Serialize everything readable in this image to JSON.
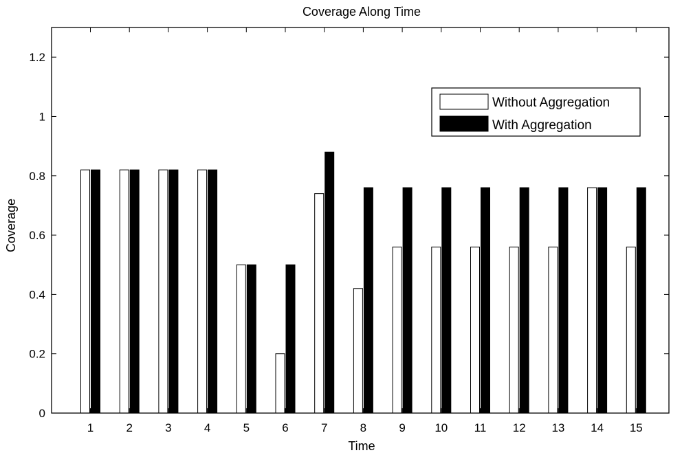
{
  "chart_data": {
    "type": "bar",
    "title": "Coverage Along Time",
    "xlabel": "Time",
    "ylabel": "Coverage",
    "categories": [
      "1",
      "2",
      "3",
      "4",
      "5",
      "6",
      "7",
      "8",
      "9",
      "10",
      "11",
      "12",
      "13",
      "14",
      "15"
    ],
    "ylim": [
      0,
      1.3
    ],
    "yticks": [
      0,
      0.2,
      0.4,
      0.6,
      0.8,
      1,
      1.2
    ],
    "ytick_labels": [
      "0",
      "0.2",
      "0.4",
      "0.6",
      "0.8",
      "1",
      "1.2"
    ],
    "grid": false,
    "legend_position": "top-right",
    "series": [
      {
        "name": "Without Aggregation",
        "color": "#ffffff",
        "values": [
          0.82,
          0.82,
          0.82,
          0.82,
          0.5,
          0.2,
          0.74,
          0.42,
          0.56,
          0.56,
          0.56,
          0.56,
          0.56,
          0.76,
          0.56
        ]
      },
      {
        "name": "With Aggregation",
        "color": "#000000",
        "values": [
          0.82,
          0.82,
          0.82,
          0.82,
          0.5,
          0.5,
          0.88,
          0.76,
          0.76,
          0.76,
          0.76,
          0.76,
          0.76,
          0.76,
          0.76
        ]
      }
    ]
  }
}
